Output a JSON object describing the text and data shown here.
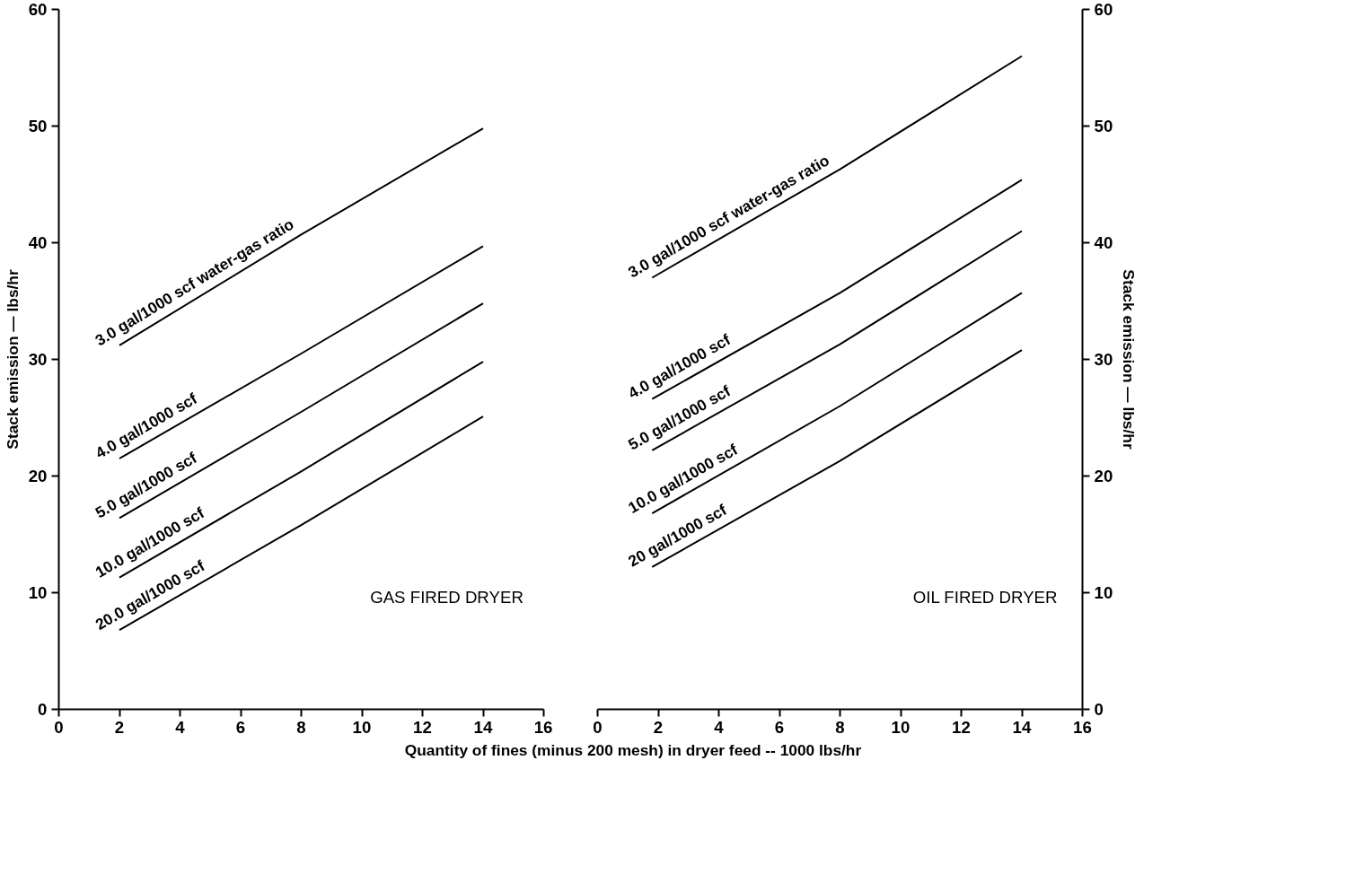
{
  "chart_data": [
    {
      "type": "line",
      "xlabel": "Quantity of fines (minus 200 mesh) in dryer feed -- 1000 lbs/hr",
      "ylabel": "Stack emission — lbs/hr",
      "xlim": [
        0,
        16
      ],
      "xticks": [
        0,
        2,
        4,
        6,
        8,
        10,
        12,
        14,
        16
      ],
      "ylim": [
        0,
        60
      ],
      "yticks": [
        0,
        10,
        20,
        30,
        40,
        50,
        60
      ],
      "grid": false,
      "legend": false,
      "marker": "none",
      "line_style": "solid",
      "annotations": [
        "GAS FIRED DRYER"
      ],
      "x": [
        2,
        8,
        14
      ],
      "series": [
        {
          "name": "3.0 gal/1000 scf water-gas ratio",
          "color": "#000000",
          "values": [
            31.2,
            40.7,
            49.8
          ]
        },
        {
          "name": "4.0 gal/1000 scf",
          "color": "#000000",
          "values": [
            21.5,
            30.5,
            39.7
          ]
        },
        {
          "name": "5.0 gal/1000 scf",
          "color": "#000000",
          "values": [
            16.4,
            25.5,
            34.8
          ]
        },
        {
          "name": "10.0 gal/1000 scf",
          "color": "#000000",
          "values": [
            11.3,
            20.4,
            29.8
          ]
        },
        {
          "name": "20.0 gal/1000 scf",
          "color": "#000000",
          "values": [
            6.8,
            15.8,
            25.1
          ]
        }
      ]
    },
    {
      "type": "line",
      "y2label": "Stack emission — lbs/hr",
      "xlim": [
        0,
        16
      ],
      "xticks": [
        0,
        2,
        4,
        6,
        8,
        10,
        12,
        14,
        16
      ],
      "y2lim": [
        0,
        60
      ],
      "y2ticks": [
        0,
        10,
        20,
        30,
        40,
        50,
        60
      ],
      "grid": false,
      "legend": false,
      "marker": "none",
      "line_style": "solid",
      "annotations": [
        "OIL FIRED DRYER"
      ],
      "x": [
        1.8,
        8,
        14
      ],
      "series": [
        {
          "name": "3.0 gal/1000 scf water-gas ratio",
          "color": "#000000",
          "axis": "y2",
          "values": [
            37.0,
            46.3,
            56.0
          ]
        },
        {
          "name": "4.0 gal/1000 scf",
          "color": "#000000",
          "axis": "y2",
          "values": [
            26.6,
            35.7,
            45.4
          ]
        },
        {
          "name": "5.0 gal/1000 scf",
          "color": "#000000",
          "axis": "y2",
          "values": [
            22.2,
            31.3,
            41.0
          ]
        },
        {
          "name": "10.0 gal/1000 scf",
          "color": "#000000",
          "axis": "y2",
          "values": [
            16.8,
            26.0,
            35.7
          ]
        },
        {
          "name": "20 gal/1000 scf",
          "color": "#000000",
          "axis": "y2",
          "values": [
            12.2,
            21.3,
            30.8
          ]
        }
      ]
    }
  ]
}
